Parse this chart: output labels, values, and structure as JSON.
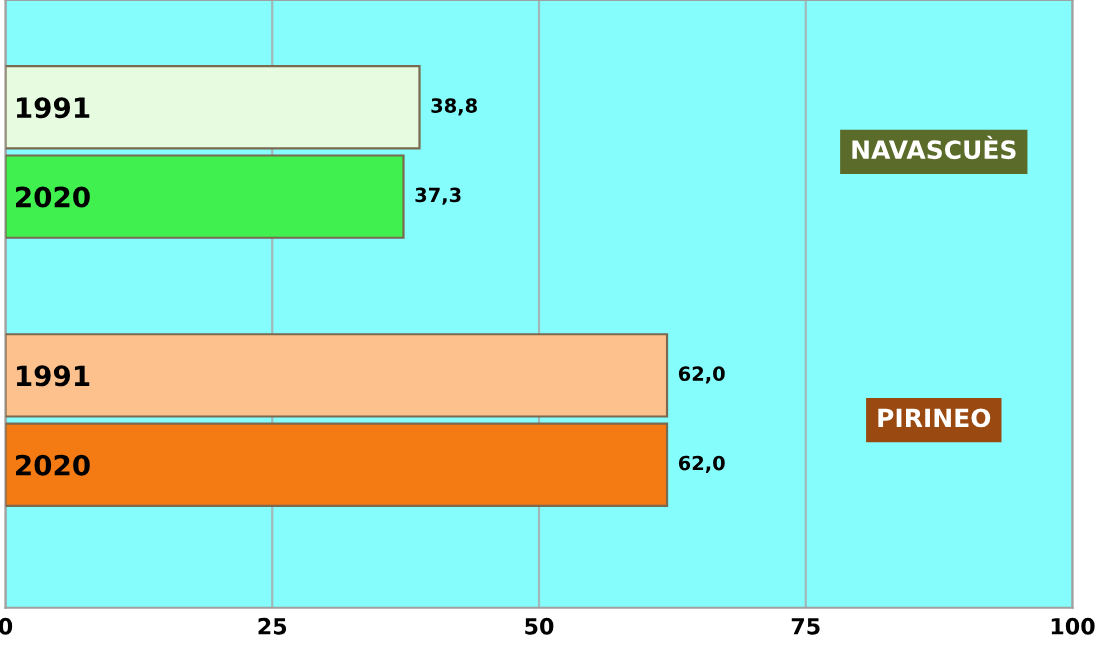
{
  "chart_data": {
    "type": "bar",
    "orientation": "horizontal",
    "categories": [
      "1991",
      "2020",
      null,
      "1991",
      "2020"
    ],
    "values": [
      38.8,
      37.3,
      null,
      62.0,
      62.0
    ],
    "colors": [
      "#e6fbe0",
      "#3ff04f",
      null,
      "#fcc18c",
      "#f47a14"
    ],
    "value_labels": [
      "38,8",
      "37,3",
      null,
      "62,0",
      "62,0"
    ],
    "annotations": [
      "NAVASCUÈS",
      "PIRINEO"
    ],
    "xlim": [
      0,
      100
    ],
    "xticks": [
      0,
      25,
      50,
      75,
      100
    ],
    "grid": "x"
  }
}
